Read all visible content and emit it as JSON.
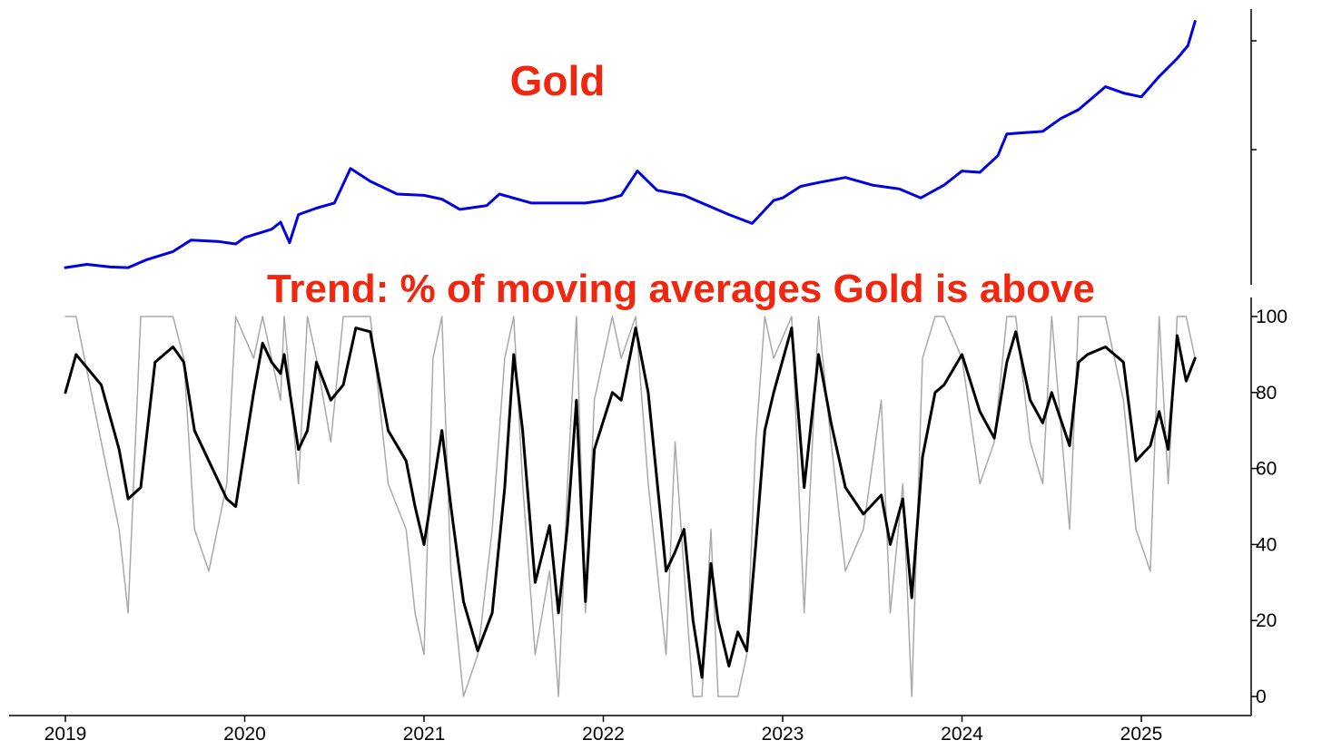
{
  "chart_data": [
    {
      "type": "line",
      "title": "Gold",
      "y_ticks_labeled": false,
      "grid": false,
      "x": [
        2019.0,
        2019.12,
        2019.25,
        2019.35,
        2019.45,
        2019.6,
        2019.7,
        2019.85,
        2019.95,
        2020.0,
        2020.15,
        2020.2,
        2020.25,
        2020.3,
        2020.4,
        2020.5,
        2020.59,
        2020.7,
        2020.85,
        2021.0,
        2021.1,
        2021.2,
        2021.35,
        2021.42,
        2021.6,
        2021.75,
        2021.9,
        2022.0,
        2022.1,
        2022.19,
        2022.3,
        2022.45,
        2022.6,
        2022.7,
        2022.83,
        2022.95,
        2023.0,
        2023.1,
        2023.2,
        2023.35,
        2023.5,
        2023.65,
        2023.77,
        2023.9,
        2024.0,
        2024.1,
        2024.2,
        2024.25,
        2024.35,
        2024.45,
        2024.55,
        2024.65,
        2024.8,
        2024.9,
        2025.0,
        2025.1,
        2025.2,
        2025.26,
        2025.3
      ],
      "series": [
        {
          "color": "#0000e0",
          "values": [
            1285,
            1310,
            1290,
            1285,
            1345,
            1410,
            1500,
            1490,
            1470,
            1520,
            1585,
            1640,
            1480,
            1700,
            1750,
            1790,
            2060,
            1960,
            1860,
            1850,
            1820,
            1740,
            1770,
            1860,
            1790,
            1790,
            1790,
            1810,
            1850,
            2040,
            1890,
            1850,
            1760,
            1700,
            1630,
            1810,
            1830,
            1920,
            1950,
            1990,
            1930,
            1900,
            1830,
            1930,
            2040,
            2030,
            2160,
            2330,
            2340,
            2350,
            2450,
            2520,
            2700,
            2650,
            2620,
            2780,
            2920,
            3020,
            3210
          ]
        }
      ]
    },
    {
      "type": "line",
      "title": "Trend: % of moving averages Gold is above",
      "ylim": [
        0,
        100
      ],
      "y_ticks": [
        0,
        20,
        40,
        60,
        80,
        100
      ],
      "x_ticks": [
        "2019",
        "2020",
        "2021",
        "2022",
        "2023",
        "2024",
        "2025"
      ],
      "grid": false,
      "x": [
        2019.0,
        2019.06,
        2019.2,
        2019.3,
        2019.35,
        2019.42,
        2019.5,
        2019.6,
        2019.66,
        2019.72,
        2019.8,
        2019.9,
        2019.95,
        2020.05,
        2020.1,
        2020.15,
        2020.2,
        2020.22,
        2020.3,
        2020.35,
        2020.4,
        2020.48,
        2020.55,
        2020.62,
        2020.7,
        2020.8,
        2020.9,
        2020.95,
        2021.0,
        2021.05,
        2021.1,
        2021.15,
        2021.22,
        2021.3,
        2021.38,
        2021.45,
        2021.5,
        2021.55,
        2021.62,
        2021.7,
        2021.75,
        2021.8,
        2021.85,
        2021.9,
        2021.95,
        2022.05,
        2022.1,
        2022.18,
        2022.25,
        2022.35,
        2022.4,
        2022.45,
        2022.5,
        2022.55,
        2022.6,
        2022.64,
        2022.7,
        2022.75,
        2022.8,
        2022.85,
        2022.9,
        2022.95,
        2023.05,
        2023.12,
        2023.2,
        2023.27,
        2023.35,
        2023.45,
        2023.55,
        2023.6,
        2023.67,
        2023.72,
        2023.78,
        2023.85,
        2023.9,
        2024.0,
        2024.1,
        2024.18,
        2024.25,
        2024.3,
        2024.38,
        2024.45,
        2024.5,
        2024.6,
        2024.65,
        2024.7,
        2024.8,
        2024.9,
        2024.97,
        2025.05,
        2025.1,
        2025.15,
        2025.2,
        2025.25,
        2025.3
      ],
      "series": [
        {
          "name": "",
          "color": "#000000",
          "values": [
            80,
            90,
            82,
            65,
            52,
            55,
            88,
            92,
            88,
            70,
            62,
            52,
            50,
            80,
            93,
            88,
            85,
            90,
            65,
            70,
            88,
            78,
            82,
            97,
            96,
            70,
            62,
            50,
            40,
            55,
            70,
            50,
            25,
            12,
            22,
            55,
            90,
            70,
            30,
            45,
            22,
            45,
            78,
            25,
            65,
            80,
            78,
            97,
            80,
            33,
            38,
            44,
            20,
            5,
            35,
            20,
            8,
            17,
            12,
            40,
            70,
            80,
            97,
            55,
            90,
            72,
            55,
            48,
            53,
            40,
            52,
            26,
            63,
            80,
            82,
            90,
            75,
            68,
            88,
            96,
            78,
            72,
            80,
            66,
            88,
            90,
            92,
            88,
            62,
            66,
            75,
            65,
            95,
            83,
            89
          ]
        },
        {
          "name": "",
          "color": "#a9a9a9",
          "values": [
            100,
            100,
            67,
            44,
            22,
            100,
            100,
            100,
            89,
            44,
            33,
            56,
            100,
            89,
            100,
            89,
            78,
            100,
            56,
            100,
            89,
            67,
            100,
            100,
            100,
            56,
            44,
            22,
            11,
            89,
            100,
            33,
            0,
            11,
            44,
            89,
            100,
            56,
            11,
            33,
            0,
            56,
            100,
            22,
            78,
            100,
            89,
            100,
            56,
            11,
            67,
            33,
            0,
            0,
            44,
            0,
            0,
            0,
            11,
            67,
            100,
            89,
            100,
            22,
            100,
            67,
            33,
            44,
            78,
            22,
            56,
            0,
            89,
            100,
            100,
            89,
            56,
            67,
            100,
            100,
            67,
            56,
            100,
            44,
            100,
            100,
            100,
            78,
            44,
            33,
            100,
            56,
            100,
            100,
            89
          ]
        }
      ]
    }
  ]
}
